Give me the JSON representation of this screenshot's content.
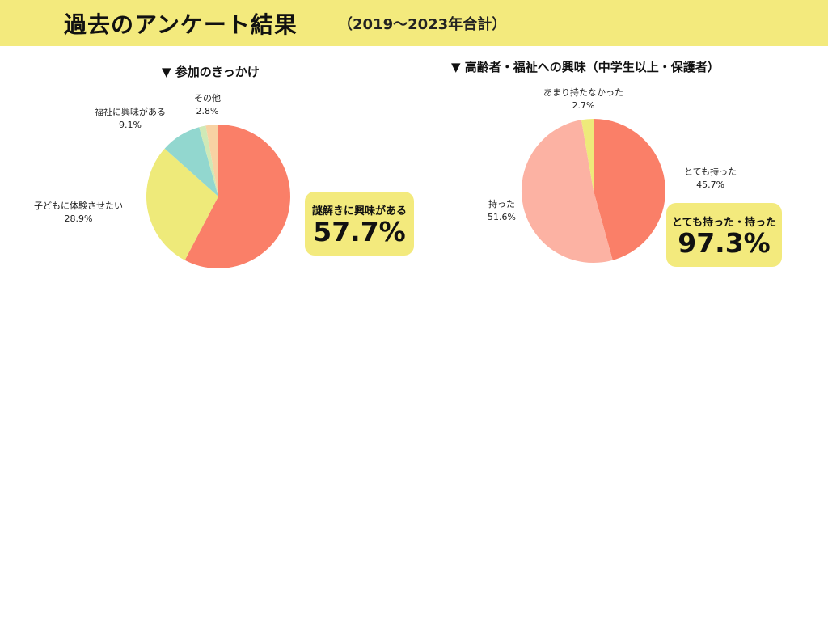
{
  "header": {
    "title": "過去のアンケート結果",
    "subtitle": "（2019〜2023年合計）"
  },
  "chart_data": [
    {
      "type": "pie",
      "title": "▼ 参加のきっかけ",
      "slices": [
        {
          "label": "謎解きに興味がある",
          "value": 57.7,
          "value_label": "",
          "color": "#fa7f68"
        },
        {
          "label": "子どもに体験させたい",
          "value": 28.9,
          "value_label": "28.9%",
          "color": "#eeea7a"
        },
        {
          "label": "福祉に興味がある",
          "value": 9.1,
          "value_label": "9.1%",
          "color": "#92d7cf"
        },
        {
          "label": "",
          "value": 1.5,
          "value_label": "",
          "color": "#cfe9b6"
        },
        {
          "label": "その他",
          "value": 2.8,
          "value_label": "2.8%",
          "color": "#f8d2a3"
        }
      ],
      "callout": {
        "label": "謎解きに興味がある",
        "value": "57.7%"
      }
    },
    {
      "type": "pie",
      "title": "▼ 高齢者・福祉への興味（中学生以上・保護者）",
      "slices": [
        {
          "label": "とても持った",
          "value": 45.7,
          "value_label": "45.7%",
          "color": "#fa7f68"
        },
        {
          "label": "持った",
          "value": 51.6,
          "value_label": "51.6%",
          "color": "#fcb2a3"
        },
        {
          "label": "あまり持たなかった",
          "value": 2.7,
          "value_label": "2.7%",
          "color": "#eeea7a"
        }
      ],
      "callout": {
        "label": "とても持った・持った",
        "value": "97.3%"
      }
    }
  ]
}
